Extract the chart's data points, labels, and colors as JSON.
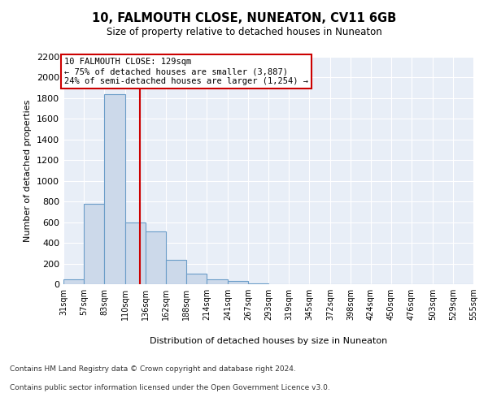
{
  "title": "10, FALMOUTH CLOSE, NUNEATON, CV11 6GB",
  "subtitle": "Size of property relative to detached houses in Nuneaton",
  "xlabel": "Distribution of detached houses by size in Nuneaton",
  "ylabel": "Number of detached properties",
  "bar_edges": [
    31,
    57,
    83,
    110,
    136,
    162,
    188,
    214,
    241,
    267,
    293,
    319,
    345,
    372,
    398,
    424,
    450,
    476,
    503,
    529,
    555
  ],
  "bar_heights": [
    50,
    775,
    1840,
    600,
    510,
    235,
    100,
    50,
    30,
    10,
    0,
    0,
    0,
    0,
    0,
    0,
    0,
    0,
    0,
    0
  ],
  "bar_facecolor": "#ccd9ea",
  "bar_edgecolor": "#6b9dc8",
  "property_size": 129,
  "vline_color": "#cc0000",
  "annotation_text": "10 FALMOUTH CLOSE: 129sqm\n← 75% of detached houses are smaller (3,887)\n24% of semi-detached houses are larger (1,254) →",
  "annotation_box_facecolor": "#ffffff",
  "annotation_box_edgecolor": "#cc0000",
  "ylim": [
    0,
    2200
  ],
  "yticks": [
    0,
    200,
    400,
    600,
    800,
    1000,
    1200,
    1400,
    1600,
    1800,
    2000,
    2200
  ],
  "bg_color": "#e8eef7",
  "footer_line1": "Contains HM Land Registry data © Crown copyright and database right 2024.",
  "footer_line2": "Contains public sector information licensed under the Open Government Licence v3.0."
}
